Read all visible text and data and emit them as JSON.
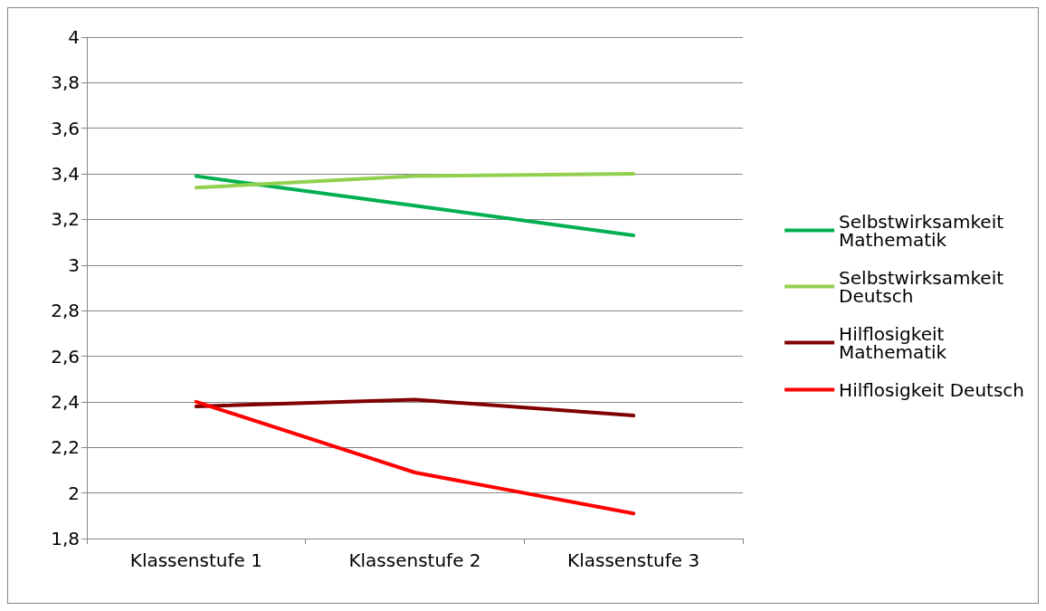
{
  "chart_data": {
    "type": "line",
    "categories": [
      "Klassenstufe 1",
      "Klassenstufe 2",
      "Klassenstufe 3"
    ],
    "series": [
      {
        "name": "Selbstwirksamkeit Mathematik",
        "color": "#00b050",
        "values": [
          3.39,
          3.26,
          3.13
        ]
      },
      {
        "name": "Selbstwirksamkeit Deutsch",
        "color": "#92d050",
        "values": [
          3.34,
          3.39,
          3.4
        ]
      },
      {
        "name": "Hilflosigkeit Mathematik",
        "color": "#800000",
        "values": [
          2.38,
          2.41,
          2.34
        ]
      },
      {
        "name": "Hilflosigkeit Deutsch",
        "color": "#ff0000",
        "values": [
          2.4,
          2.09,
          1.91
        ]
      }
    ],
    "ylim": [
      1.8,
      4
    ],
    "yticks": [
      {
        "value": 1.8,
        "label": "1,8"
      },
      2,
      {
        "value": 2.2,
        "label": "2,2"
      },
      {
        "value": 2.4,
        "label": "2,4"
      },
      {
        "value": 2.6,
        "label": "2,6"
      },
      {
        "value": 2.8,
        "label": "2,8"
      },
      3,
      {
        "value": 3.2,
        "label": "3,2"
      },
      {
        "value": 3.4,
        "label": "3,4"
      },
      {
        "value": 3.6,
        "label": "3,6"
      },
      {
        "value": 3.8,
        "label": "3,8"
      },
      4
    ],
    "grid": "y",
    "legend": "right",
    "marker": "none",
    "line_style": "solid"
  }
}
